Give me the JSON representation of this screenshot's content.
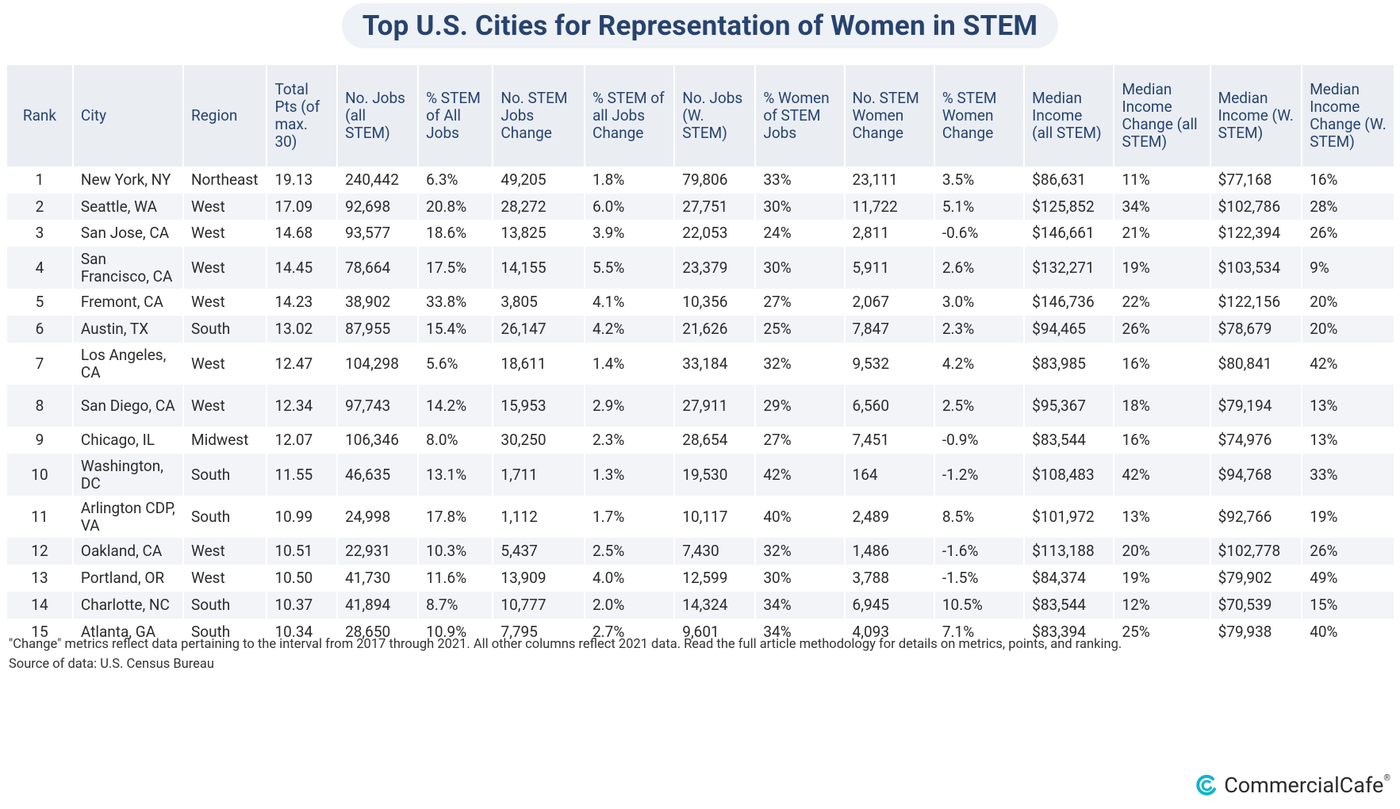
{
  "title": "Top U.S. Cities for Representation of Women in STEM",
  "colors": {
    "header_bg": "#eaeef3",
    "title_text": "#27436e",
    "stripe": "#f2f4f7",
    "logo_accent": "#12b5cb"
  },
  "chart_data": {
    "type": "table",
    "title": "Top U.S. Cities for Representation of Women in STEM",
    "columns": [
      "Rank",
      "City",
      "Region",
      "Total Pts (of max. 30)",
      "No. Jobs (all STEM)",
      "% STEM of All Jobs",
      "No. STEM Jobs Change",
      "% STEM of all Jobs Change",
      "No. Jobs (W. STEM)",
      "% Women of STEM Jobs",
      "No. STEM Women Change",
      "% STEM Women Change",
      "Median Income (all STEM)",
      "Median Income Change (all STEM)",
      "Median Income (W. STEM)",
      "Median Income Change (W. STEM)"
    ],
    "rows": [
      [
        "1",
        "New York, NY",
        "Northeast",
        "19.13",
        "240,442",
        "6.3%",
        "49,205",
        "1.8%",
        "79,806",
        "33%",
        "23,111",
        "3.5%",
        "$86,631",
        "11%",
        "$77,168",
        "16%"
      ],
      [
        "2",
        "Seattle, WA",
        "West",
        "17.09",
        "92,698",
        "20.8%",
        "28,272",
        "6.0%",
        "27,751",
        "30%",
        "11,722",
        "5.1%",
        "$125,852",
        "34%",
        "$102,786",
        "28%"
      ],
      [
        "3",
        "San Jose, CA",
        "West",
        "14.68",
        "93,577",
        "18.6%",
        "13,825",
        "3.9%",
        "22,053",
        "24%",
        "2,811",
        "-0.6%",
        "$146,661",
        "21%",
        "$122,394",
        "26%"
      ],
      [
        "4",
        "San Francisco, CA",
        "West",
        "14.45",
        "78,664",
        "17.5%",
        "14,155",
        "5.5%",
        "23,379",
        "30%",
        "5,911",
        "2.6%",
        "$132,271",
        "19%",
        "$103,534",
        "9%"
      ],
      [
        "5",
        "Fremont, CA",
        "West",
        "14.23",
        "38,902",
        "33.8%",
        "3,805",
        "4.1%",
        "10,356",
        "27%",
        "2,067",
        "3.0%",
        "$146,736",
        "22%",
        "$122,156",
        "20%"
      ],
      [
        "6",
        "Austin, TX",
        "South",
        "13.02",
        "87,955",
        "15.4%",
        "26,147",
        "4.2%",
        "21,626",
        "25%",
        "7,847",
        "2.3%",
        "$94,465",
        "26%",
        "$78,679",
        "20%"
      ],
      [
        "7",
        "Los Angeles, CA",
        "West",
        "12.47",
        "104,298",
        "5.6%",
        "18,611",
        "1.4%",
        "33,184",
        "32%",
        "9,532",
        "4.2%",
        "$83,985",
        "16%",
        "$80,841",
        "42%"
      ],
      [
        "8",
        "San Diego, CA",
        "West",
        "12.34",
        "97,743",
        "14.2%",
        "15,953",
        "2.9%",
        "27,911",
        "29%",
        "6,560",
        "2.5%",
        "$95,367",
        "18%",
        "$79,194",
        "13%"
      ],
      [
        "9",
        "Chicago, IL",
        "Midwest",
        "12.07",
        "106,346",
        "8.0%",
        "30,250",
        "2.3%",
        "28,654",
        "27%",
        "7,451",
        "-0.9%",
        "$83,544",
        "16%",
        "$74,976",
        "13%"
      ],
      [
        "10",
        "Washington, DC",
        "South",
        "11.55",
        "46,635",
        "13.1%",
        "1,711",
        "1.3%",
        "19,530",
        "42%",
        "164",
        "-1.2%",
        "$108,483",
        "42%",
        "$94,768",
        "33%"
      ],
      [
        "11",
        "Arlington CDP, VA",
        "South",
        "10.99",
        "24,998",
        "17.8%",
        "1,112",
        "1.7%",
        "10,117",
        "40%",
        "2,489",
        "8.5%",
        "$101,972",
        "13%",
        "$92,766",
        "19%"
      ],
      [
        "12",
        "Oakland, CA",
        "West",
        "10.51",
        "22,931",
        "10.3%",
        "5,437",
        "2.5%",
        "7,430",
        "32%",
        "1,486",
        "-1.6%",
        "$113,188",
        "20%",
        "$102,778",
        "26%"
      ],
      [
        "13",
        "Portland, OR",
        "West",
        "10.50",
        "41,730",
        "11.6%",
        "13,909",
        "4.0%",
        "12,599",
        "30%",
        "3,788",
        "-1.5%",
        "$84,374",
        "19%",
        "$79,902",
        "49%"
      ],
      [
        "14",
        "Charlotte, NC",
        "South",
        "10.37",
        "41,894",
        "8.7%",
        "10,777",
        "2.0%",
        "14,324",
        "34%",
        "6,945",
        "10.5%",
        "$83,544",
        "12%",
        "$70,539",
        "15%"
      ],
      [
        "15",
        "Atlanta, GA",
        "South",
        "10.34",
        "28,650",
        "10.9%",
        "7,795",
        "2.7%",
        "9,601",
        "34%",
        "4,093",
        "7.1%",
        "$83,394",
        "25%",
        "$79,938",
        "40%"
      ]
    ]
  },
  "footnote": "\"Change\" metrics reflect data pertaining to the interval from 2017 through 2021. All other columns reflect 2021 data. Read the full article methodology for details on metrics, points, and ranking.",
  "source": "Source of data: U.S. Census Bureau",
  "logo": {
    "text": "CommercialCafe",
    "registered": "®",
    "icon": "cc-swirl-logo-icon"
  }
}
